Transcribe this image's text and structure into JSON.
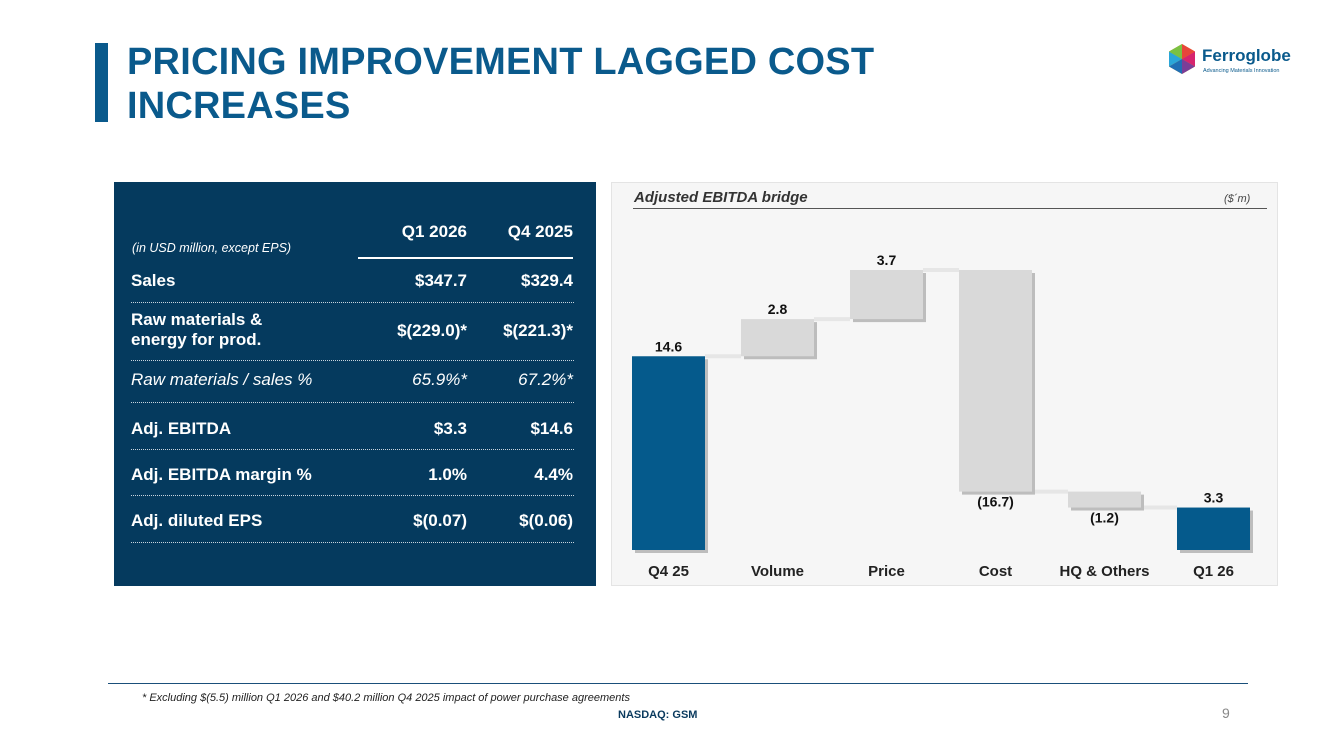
{
  "title": {
    "line1": "PRICING IMPROVEMENT LAGGED COST",
    "line2": "INCREASES"
  },
  "logo": {
    "name": "Ferroglobe",
    "tagline": "Advancing Materials Innovation"
  },
  "table": {
    "note": "(in USD million, except EPS)",
    "columns": [
      "Q1 2026",
      "Q4 2025"
    ],
    "rows": [
      {
        "label": "Sales",
        "q1_2026": "$347.7",
        "q4_2025": "$329.4"
      },
      {
        "label": "Raw materials & energy for prod.",
        "q1_2026": "$(229.0)*",
        "q4_2025": "$(221.3)*"
      },
      {
        "label": "Raw materials / sales %",
        "q1_2026": "65.9%*",
        "q4_2025": "67.2%*"
      },
      {
        "label": "Adj. EBITDA",
        "q1_2026": "$3.3",
        "q4_2025": "$14.6"
      },
      {
        "label": "Adj. EBITDA margin %",
        "q1_2026": "1.0%",
        "q4_2025": "4.4%"
      },
      {
        "label": "Adj. diluted EPS",
        "q1_2026": "$(0.07)",
        "q4_2025": "$(0.06)"
      }
    ]
  },
  "chart_data": {
    "type": "bar",
    "title": "Adjusted EBITDA bridge",
    "unit_label": "($´m)",
    "categories": [
      "Q4 25",
      "Volume",
      "Price",
      "Cost",
      "HQ & Others",
      "Q1 26"
    ],
    "values": [
      14.6,
      2.8,
      3.7,
      -16.7,
      -1.2,
      3.3
    ],
    "value_labels": [
      "14.6",
      "2.8",
      "3.7",
      "(16.7)",
      "(1.2)",
      "3.3"
    ],
    "bar_kinds": [
      "total",
      "delta",
      "delta",
      "delta",
      "delta",
      "total"
    ],
    "colors": {
      "total": "#055a8c",
      "delta": "#d9d9d9"
    },
    "ylim": [
      0,
      21.1
    ],
    "grid": false,
    "legend": "none"
  },
  "footer": {
    "footnote": "* Excluding $(5.5) million Q1 2026 and $40.2 million Q4 2025 impact of power purchase agreements",
    "ticker": "NASDAQ: GSM",
    "page": "9"
  }
}
